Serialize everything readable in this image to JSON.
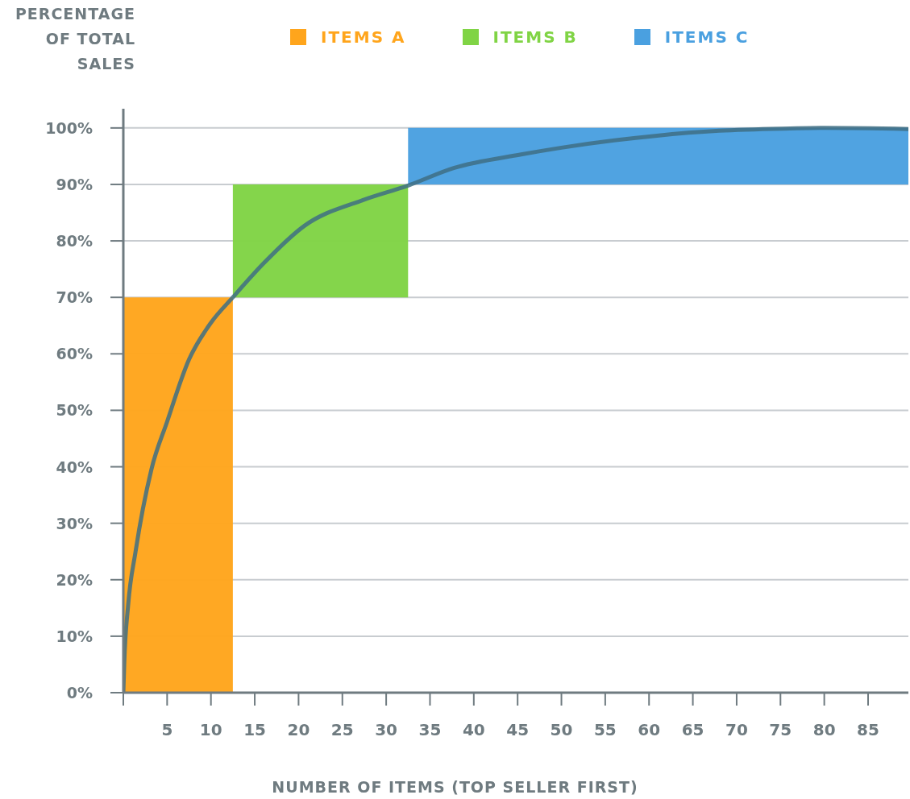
{
  "chart_data": {
    "type": "area",
    "stacked": true,
    "xlabel": "NUMBER OF ITEMS (TOP SELLER FIRST)",
    "ylabel": "PERCENTAGE OF TOTAL SALES",
    "series": [
      {
        "name": "ITEMS A",
        "color": "#ffa51c",
        "x": [
          0,
          12.5
        ],
        "values": [
          70,
          70
        ]
      },
      {
        "name": "ITEMS B",
        "color": "#80d445",
        "x": [
          12.5,
          32.5
        ],
        "values": [
          20,
          20
        ]
      },
      {
        "name": "ITEMS C",
        "color": "#4aa0e0",
        "x": [
          32.5,
          89.6
        ],
        "values": [
          10,
          10
        ]
      },
      {
        "type": "line",
        "color": "#3e6e84",
        "x": [
          0,
          0.1,
          0.55,
          1.4,
          3.2,
          5,
          7.5,
          10,
          12.5,
          16,
          20.7,
          27.3,
          32.5,
          37.7,
          45.4,
          50,
          60.7,
          68,
          76.1,
          80,
          89.6
        ],
        "values": [
          0,
          5,
          15.5,
          25,
          39.5,
          48,
          59,
          65.5,
          70,
          76,
          82.7,
          87.2,
          89.8,
          92.9,
          95.3,
          96.5,
          98.6,
          99.5,
          99.9,
          100,
          99.8
        ]
      }
    ],
    "xlim": [
      0,
      89.6
    ],
    "xticks": [
      {
        "value": 0,
        "label": null
      },
      5,
      10,
      15,
      20,
      25,
      30,
      35,
      40,
      45,
      50,
      55,
      60,
      65,
      70,
      75,
      80,
      85
    ],
    "ylim": [
      0,
      103.4
    ],
    "yticks": [
      {
        "value": 0,
        "label": "0%"
      },
      {
        "value": 10,
        "label": "10%"
      },
      {
        "value": 20,
        "label": "20%"
      },
      {
        "value": 30,
        "label": "30%"
      },
      {
        "value": 40,
        "label": "40%"
      },
      {
        "value": 50,
        "label": "50%"
      },
      {
        "value": 60,
        "label": "60%"
      },
      {
        "value": 70,
        "label": "70%"
      },
      {
        "value": 80,
        "label": "80%"
      },
      {
        "value": 90,
        "label": "90%"
      },
      {
        "value": 100,
        "label": "100%"
      }
    ],
    "grid": "y",
    "legend": "top",
    "marker": "none",
    "line_style": "solid"
  }
}
